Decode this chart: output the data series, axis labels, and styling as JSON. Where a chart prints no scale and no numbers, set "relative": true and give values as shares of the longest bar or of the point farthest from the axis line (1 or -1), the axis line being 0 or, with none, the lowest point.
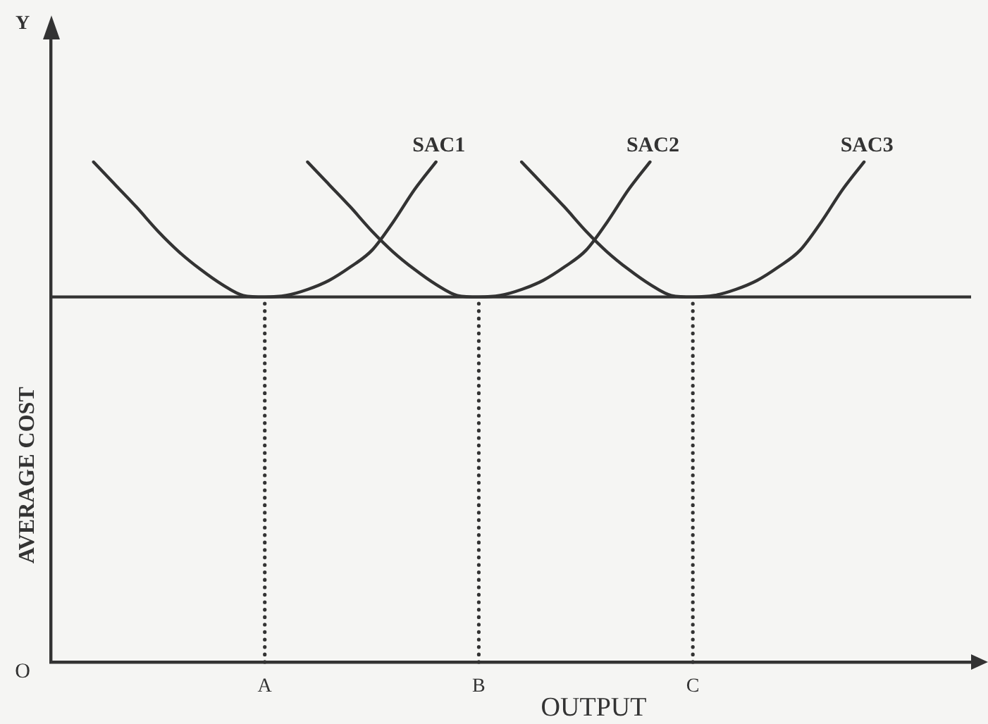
{
  "chart_data": {
    "type": "line",
    "relative": true,
    "xlabel": "OUTPUT",
    "ylabel": "AVERAGE COST",
    "annotations": [
      "Y",
      "O"
    ],
    "categories": [
      null,
      null,
      null,
      null,
      null,
      null,
      null,
      null,
      null,
      null,
      "A",
      null,
      null,
      null,
      null,
      null,
      null,
      null,
      null,
      null,
      "B",
      null,
      null,
      null,
      null,
      null,
      null,
      null,
      null,
      null,
      "C",
      null,
      null,
      null,
      null,
      null,
      null,
      null,
      null,
      null,
      null,
      null,
      null,
      null
    ],
    "series": [
      {
        "name": "SAC1",
        "color": "#333333",
        "values": [
          null,
          null,
          1.0,
          0.955,
          0.91,
          0.862,
          0.82,
          0.785,
          0.755,
          0.733,
          0.73,
          0.733,
          0.745,
          0.763,
          0.79,
          0.823,
          0.88,
          0.945,
          1.0,
          null,
          null,
          null,
          null,
          null,
          null,
          null,
          null,
          null,
          null,
          null,
          null,
          null,
          null,
          null,
          null,
          null,
          null,
          null,
          null,
          null,
          null,
          null,
          null,
          null
        ]
      },
      {
        "name": "SAC2",
        "color": "#333333",
        "values": [
          null,
          null,
          null,
          null,
          null,
          null,
          null,
          null,
          null,
          null,
          null,
          null,
          1.0,
          0.955,
          0.91,
          0.862,
          0.82,
          0.785,
          0.755,
          0.733,
          0.73,
          0.733,
          0.745,
          0.763,
          0.79,
          0.823,
          0.88,
          0.945,
          1.0,
          null,
          null,
          null,
          null,
          null,
          null,
          null,
          null,
          null,
          null,
          null,
          null,
          null,
          null,
          null
        ]
      },
      {
        "name": "SAC3",
        "color": "#333333",
        "values": [
          null,
          null,
          null,
          null,
          null,
          null,
          null,
          null,
          null,
          null,
          null,
          null,
          null,
          null,
          null,
          null,
          null,
          null,
          null,
          null,
          null,
          null,
          1.0,
          0.955,
          0.91,
          0.862,
          0.82,
          0.785,
          0.755,
          0.733,
          0.73,
          0.733,
          0.745,
          0.763,
          0.79,
          0.823,
          0.88,
          0.945,
          1.0,
          null,
          null,
          null,
          null,
          null
        ]
      }
    ],
    "ref_lines": [
      {
        "axis": "y",
        "value": 0.73,
        "color": "#333333"
      },
      {
        "axis": "x",
        "value": "A",
        "line_style": "dotted",
        "color": "#333333"
      },
      {
        "axis": "x",
        "value": "B",
        "line_style": "dotted",
        "color": "#333333"
      },
      {
        "axis": "x",
        "value": "C",
        "line_style": "dotted",
        "color": "#333333"
      }
    ],
    "grid": false,
    "legend": false,
    "marker": "none",
    "tick_labels": "x"
  }
}
